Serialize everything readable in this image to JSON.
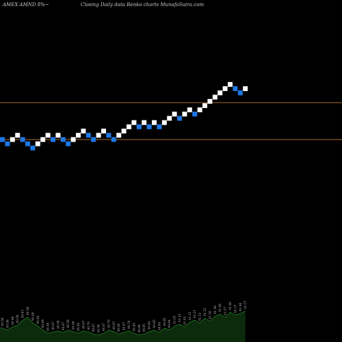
{
  "header": {
    "symbol": "AMEX  AMND 8%~",
    "subtitle": "Closing Daily data  Renko  charts MunafaSutra.com"
  },
  "chart_data": {
    "type": "renko",
    "title": "AMEX  AMND 8%~",
    "subtitle": "Closing Daily data  Renko  charts MunafaSutra.com",
    "colors": {
      "up": "#ffffff",
      "down": "#1e78e6",
      "reference_line": "#a86e28",
      "volume_fill": "#0c2a0c",
      "volume_line": "#1f6a1f",
      "background": "#000000"
    },
    "bricks": [
      {
        "d": "down",
        "l": 0
      },
      {
        "d": "down",
        "l": -1
      },
      {
        "d": "up",
        "l": 0
      },
      {
        "d": "up",
        "l": 1
      },
      {
        "d": "down",
        "l": 0
      },
      {
        "d": "down",
        "l": -1
      },
      {
        "d": "down",
        "l": -2
      },
      {
        "d": "up",
        "l": -1
      },
      {
        "d": "up",
        "l": 0
      },
      {
        "d": "up",
        "l": 1
      },
      {
        "d": "down",
        "l": 0
      },
      {
        "d": "up",
        "l": 1
      },
      {
        "d": "down",
        "l": 0
      },
      {
        "d": "down",
        "l": -1
      },
      {
        "d": "up",
        "l": 0
      },
      {
        "d": "up",
        "l": 1
      },
      {
        "d": "up",
        "l": 2
      },
      {
        "d": "down",
        "l": 1
      },
      {
        "d": "down",
        "l": 0
      },
      {
        "d": "up",
        "l": 1
      },
      {
        "d": "up",
        "l": 2
      },
      {
        "d": "down",
        "l": 1
      },
      {
        "d": "down",
        "l": 0
      },
      {
        "d": "up",
        "l": 1
      },
      {
        "d": "up",
        "l": 2
      },
      {
        "d": "up",
        "l": 3
      },
      {
        "d": "up",
        "l": 4
      },
      {
        "d": "down",
        "l": 3
      },
      {
        "d": "up",
        "l": 4
      },
      {
        "d": "down",
        "l": 3
      },
      {
        "d": "up",
        "l": 4
      },
      {
        "d": "down",
        "l": 3
      },
      {
        "d": "up",
        "l": 4
      },
      {
        "d": "up",
        "l": 5
      },
      {
        "d": "up",
        "l": 6
      },
      {
        "d": "down",
        "l": 5
      },
      {
        "d": "up",
        "l": 6
      },
      {
        "d": "up",
        "l": 7
      },
      {
        "d": "down",
        "l": 6
      },
      {
        "d": "up",
        "l": 7
      },
      {
        "d": "up",
        "l": 8
      },
      {
        "d": "up",
        "l": 9
      },
      {
        "d": "up",
        "l": 10
      },
      {
        "d": "up",
        "l": 11
      },
      {
        "d": "up",
        "l": 12
      },
      {
        "d": "up",
        "l": 13
      },
      {
        "d": "down",
        "l": 12
      },
      {
        "d": "down",
        "l": 11
      },
      {
        "d": "up",
        "l": 12
      }
    ],
    "reference_lines": [
      "upper",
      "lower"
    ],
    "value_labels": [
      "40.58",
      "40.58",
      "40.49",
      "40.58",
      "40.67",
      "40.58",
      "40.49",
      "40.40",
      "40.49",
      "40.58",
      "40.67",
      "40.58",
      "40.67",
      "40.58",
      "40.49",
      "40.58",
      "40.67",
      "40.76",
      "40.67",
      "40.58",
      "40.67",
      "40.76",
      "40.67",
      "40.58",
      "40.67",
      "40.76",
      "40.85",
      "40.94",
      "40.85",
      "40.94",
      "40.85",
      "40.94",
      "40.85",
      "40.94",
      "41.03",
      "41.12",
      "41.03",
      "41.12",
      "41.21",
      "41.12",
      "41.21",
      "41.30",
      "41.39",
      "41.48",
      "41.57",
      "41.66",
      "41.57",
      "41.48",
      "41.57"
    ],
    "volume": [
      0.35,
      0.3,
      0.38,
      0.42,
      0.55,
      0.62,
      0.48,
      0.4,
      0.3,
      0.22,
      0.25,
      0.28,
      0.24,
      0.3,
      0.26,
      0.22,
      0.28,
      0.25,
      0.2,
      0.18,
      0.22,
      0.3,
      0.26,
      0.2,
      0.24,
      0.28,
      0.22,
      0.18,
      0.2,
      0.26,
      0.3,
      0.24,
      0.35,
      0.3,
      0.4,
      0.45,
      0.38,
      0.5,
      0.55,
      0.48,
      0.6,
      0.52,
      0.65,
      0.7,
      0.62,
      0.75,
      0.68,
      0.72,
      0.78
    ]
  }
}
